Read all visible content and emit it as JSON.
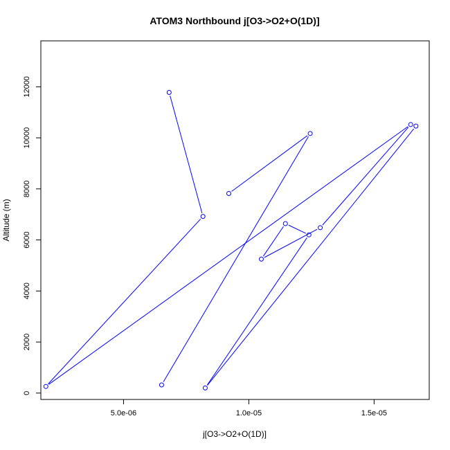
{
  "chart_data": {
    "type": "line",
    "title": "ATOM3 Northbound j[O3->O2+O(1D)]",
    "xlabel": "j[O3->O2+O(1D)]",
    "ylabel": "Altitude (m)",
    "xlim": [
      1.7e-06,
      1.72e-05
    ],
    "ylim": [
      -250,
      13800
    ],
    "x_ticks": [
      {
        "value": 5e-06,
        "label": "5.0e-06"
      },
      {
        "value": 1e-05,
        "label": "1.0e-05"
      },
      {
        "value": 1.5e-05,
        "label": "1.5e-05"
      }
    ],
    "y_ticks": [
      {
        "value": 0,
        "label": "0"
      },
      {
        "value": 2000,
        "label": "2000"
      },
      {
        "value": 4000,
        "label": "4000"
      },
      {
        "value": 6000,
        "label": "6000"
      },
      {
        "value": 8000,
        "label": "8000"
      },
      {
        "value": 10000,
        "label": "10000"
      },
      {
        "value": 12000,
        "label": "12000"
      }
    ],
    "grid": false,
    "line_color": "#0000ff",
    "point_marker": "open-circle",
    "series": [
      {
        "points": [
          {
            "x": 9.2e-06,
            "y": 7820
          },
          {
            "x": 1.245e-05,
            "y": 10170
          },
          {
            "x": 6.52e-06,
            "y": 320
          }
        ]
      },
      {
        "points": [
          {
            "x": 6.82e-06,
            "y": 11780
          },
          {
            "x": 8.17e-06,
            "y": 6920
          },
          {
            "x": 1.9e-06,
            "y": 260
          },
          {
            "x": 1.646e-05,
            "y": 10520
          },
          {
            "x": 1.285e-05,
            "y": 6480
          },
          {
            "x": 1.05e-05,
            "y": 5250
          },
          {
            "x": 1.146e-05,
            "y": 6640
          },
          {
            "x": 1.24e-05,
            "y": 6200
          },
          {
            "x": 8.26e-06,
            "y": 200
          },
          {
            "x": 1.667e-05,
            "y": 10460
          }
        ]
      }
    ]
  }
}
